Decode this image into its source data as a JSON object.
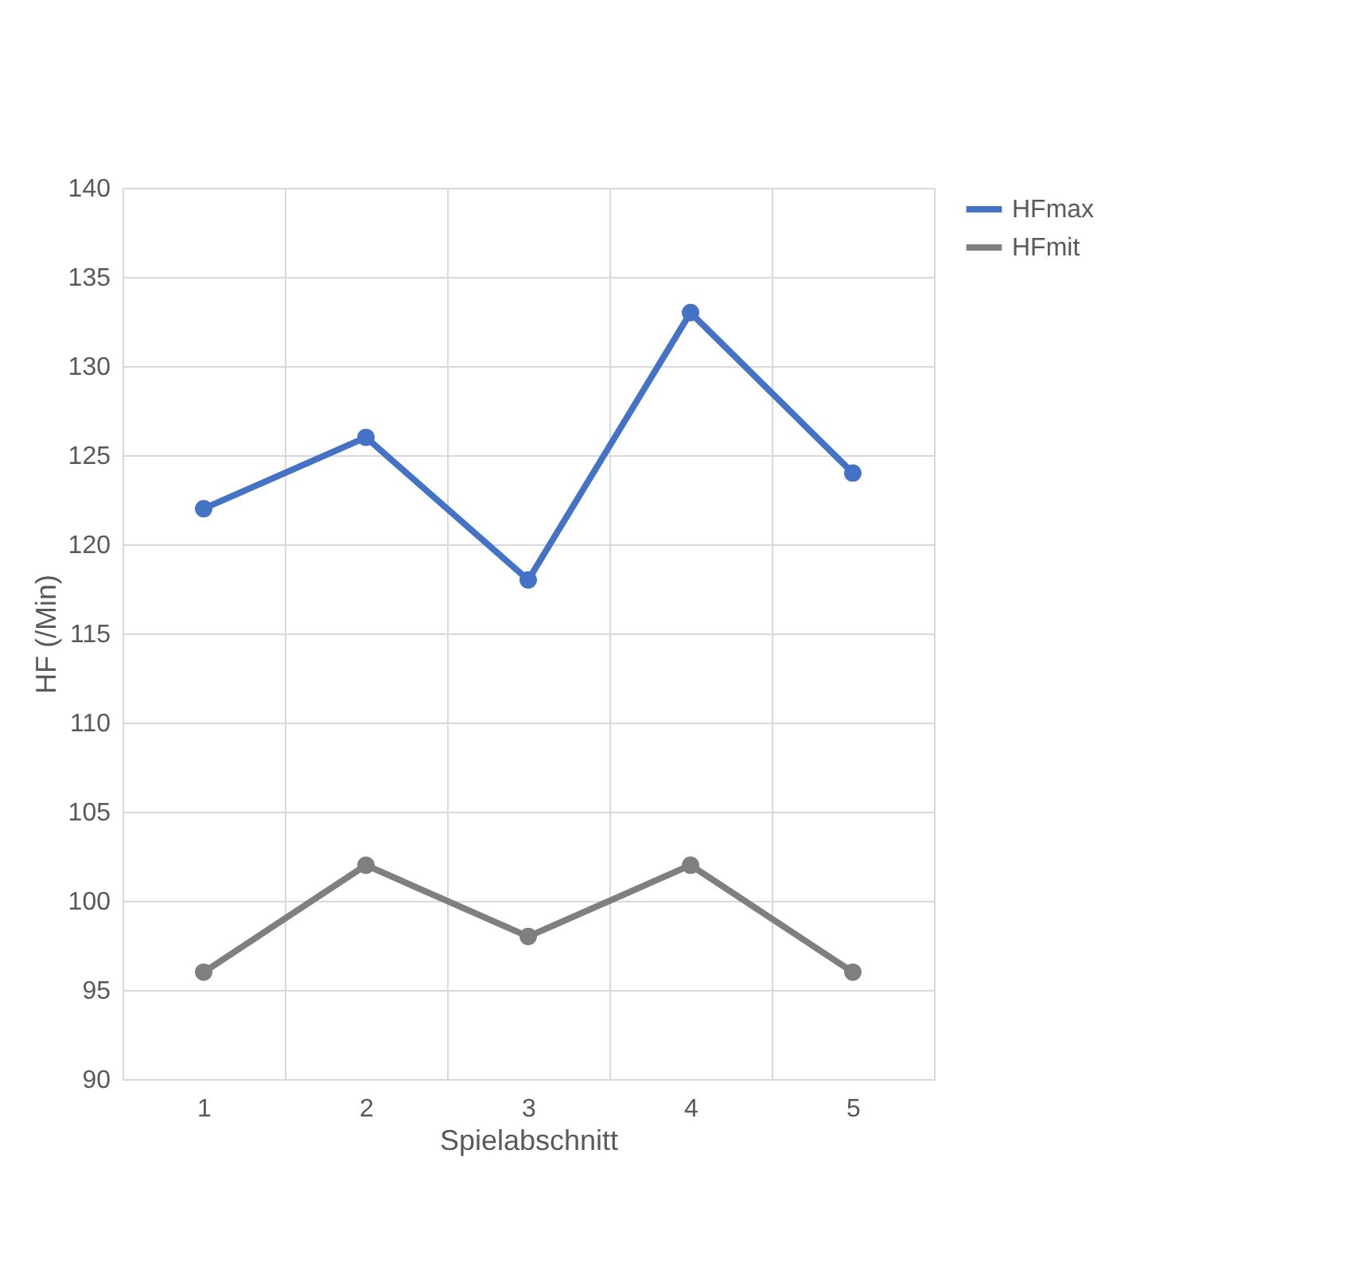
{
  "chart_data": {
    "type": "line",
    "xlabel": "Spielabschnitt",
    "ylabel": "HF (/Min)",
    "categories": [
      "1",
      "2",
      "3",
      "4",
      "5"
    ],
    "series": [
      {
        "name": "HFmax",
        "color": "#4472c4",
        "values": [
          122,
          126,
          118,
          133,
          124
        ]
      },
      {
        "name": "HFmit",
        "color": "#7f7f7f",
        "values": [
          96,
          102,
          98,
          102,
          96
        ]
      }
    ],
    "ylim": [
      90,
      140
    ],
    "yticks": [
      90,
      95,
      100,
      105,
      110,
      115,
      120,
      125,
      130,
      135,
      140
    ],
    "grid": true,
    "legend": "top right",
    "marker": "circle",
    "line_style": "solid"
  }
}
